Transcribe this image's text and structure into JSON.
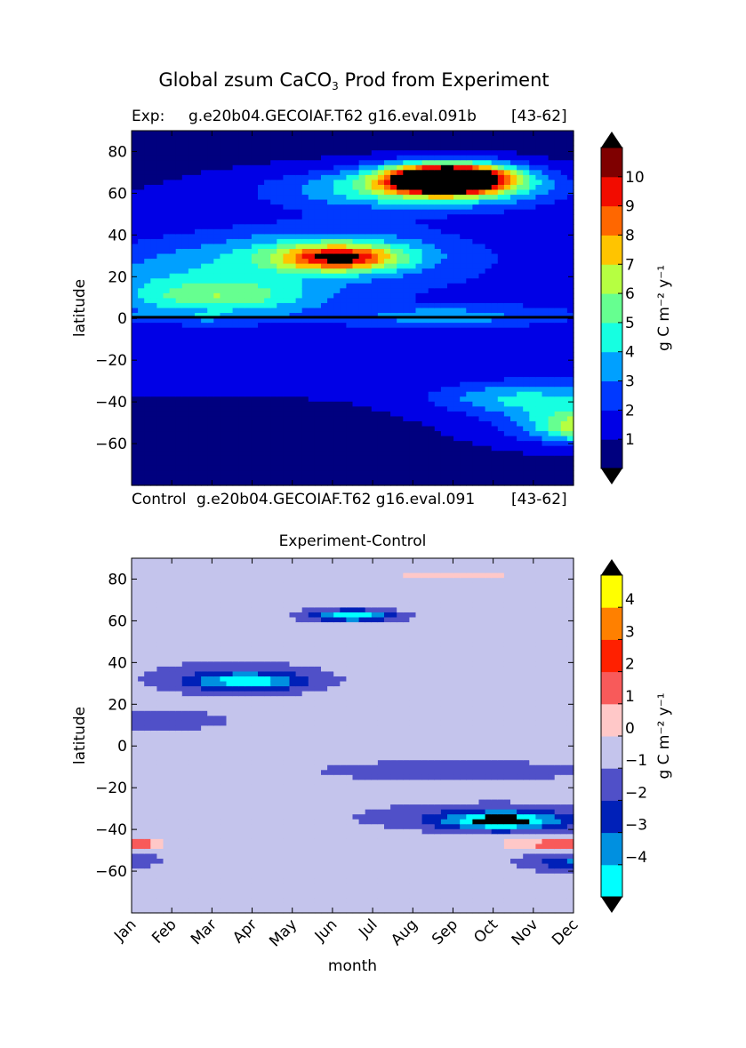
{
  "figure": {
    "title_prefix": "Global zsum CaCO",
    "title_subscript": "3",
    "title_suffix": " Prod from Experiment"
  },
  "chart_data": [
    {
      "type": "heatmap",
      "title_left": "Exp:",
      "title_center": "g.e20b04.GECOIAF.T62 g16.eval.091b",
      "title_right": "[43-62]",
      "footer_left": "Control",
      "footer_center": "g.e20b04.GECOIAF.T62 g16.eval.091",
      "footer_right": "[43-62]",
      "ylabel": "latitude",
      "ylim": [
        -80,
        90
      ],
      "y_ticks": [
        80,
        60,
        40,
        20,
        0,
        -20,
        -40,
        -60
      ],
      "colorbar_label": "g C m⁻² y⁻¹",
      "colorbar_ticks": [
        "1",
        "2",
        "3",
        "4",
        "5",
        "6",
        "7",
        "8",
        "9",
        "10"
      ],
      "levels": [
        0,
        1,
        2,
        3,
        4,
        5,
        6,
        7,
        8,
        9,
        10
      ],
      "colors": [
        "#00007f",
        "#0000e6",
        "#0039ff",
        "#00a0ff",
        "#16ffe1",
        "#66ff90",
        "#b6ff41",
        "#ffc400",
        "#ff6700",
        "#f20c00",
        "#7f0000"
      ],
      "extend_low_color": "#000000",
      "extend_high_color": "#000000",
      "features": [
        {
          "x": 7.9,
          "y": 67,
          "sx": 1.1,
          "sy": 5,
          "amp": 14
        },
        {
          "x": 7.0,
          "y": 62,
          "sx": 2.4,
          "sy": 7,
          "amp": 4
        },
        {
          "x": 5.2,
          "y": 29,
          "sx": 1.1,
          "sy": 4.5,
          "amp": 6.5
        },
        {
          "x": 4.8,
          "y": 32,
          "sx": 2.2,
          "sy": 9,
          "amp": 2.5
        },
        {
          "x": 2.2,
          "y": 10,
          "sx": 1.7,
          "sy": 6,
          "amp": 3.5
        },
        {
          "x": 1.5,
          "y": 22,
          "sx": 2.2,
          "sy": 9,
          "amp": 1.5
        },
        {
          "x": 1.5,
          "y": 0.5,
          "sx": 1.6,
          "sy": 1,
          "amp": 1.5
        },
        {
          "x": 7.8,
          "y": 1,
          "sx": 1.6,
          "sy": 3,
          "amp": 2
        },
        {
          "x": 9.3,
          "y": -38,
          "sx": 1.4,
          "sy": 5,
          "amp": 2
        },
        {
          "x": 11.4,
          "y": -52,
          "sx": 0.9,
          "sy": 5,
          "amp": 4.5
        },
        {
          "x": 11.0,
          "y": -46,
          "sx": 1.7,
          "sy": 10,
          "amp": 2.5
        }
      ]
    },
    {
      "type": "heatmap",
      "title": "Experiment-Control",
      "ylabel": "latitude",
      "xlabel": "month",
      "ylim": [
        -80,
        90
      ],
      "y_ticks": [
        80,
        60,
        40,
        20,
        0,
        -20,
        -40,
        -60
      ],
      "categories": [
        "Jan",
        "Feb",
        "Mar",
        "Apr",
        "May",
        "Jun",
        "Jul",
        "Aug",
        "Sep",
        "Oct",
        "Nov",
        "Dec"
      ],
      "colorbar_label": "g C m⁻² y⁻¹",
      "colorbar_ticks": [
        "4",
        "3",
        "2",
        "1",
        "0",
        "-1",
        "-2",
        "-3",
        "-4"
      ],
      "levels": [
        -5,
        -4,
        -3,
        -2,
        -1,
        0,
        1,
        2,
        3,
        4,
        5
      ],
      "colors": [
        "#00ffff",
        "#0090e0",
        "#0020b8",
        "#5050c8",
        "#c4c4ec",
        "#ffc8c8",
        "#f85a5a",
        "#ff2000",
        "#ff8000",
        "#ffff00"
      ],
      "extend_low_color": "#000000",
      "extend_high_color": "#000000",
      "features": [
        {
          "x": 5.5,
          "y": 62.5,
          "sx": 0.8,
          "sy": 2,
          "amp": -4.2
        },
        {
          "x": 2.9,
          "y": 31,
          "sx": 1.0,
          "sy": 3,
          "amp": -3.5
        },
        {
          "x": 2.5,
          "y": 33,
          "sx": 1.9,
          "sy": 7,
          "amp": -0.9
        },
        {
          "x": 0.7,
          "y": 12,
          "sx": 1.6,
          "sy": 4,
          "amp": -0.9
        },
        {
          "x": 9.2,
          "y": -36,
          "sx": 1.0,
          "sy": 3,
          "amp": -4.5
        },
        {
          "x": 9.0,
          "y": -34,
          "sx": 2.6,
          "sy": 5,
          "amp": -1.2
        },
        {
          "x": 8.0,
          "y": -12,
          "sx": 4.0,
          "sy": 6,
          "amp": -0.7
        },
        {
          "x": 10.7,
          "y": -47,
          "sx": 0.9,
          "sy": 1.5,
          "amp": 2.6
        },
        {
          "x": 0.2,
          "y": -47,
          "sx": 0.4,
          "sy": 1.5,
          "amp": 2.5
        },
        {
          "x": 11.3,
          "y": -56,
          "sx": 1.0,
          "sy": 3,
          "amp": -2.8
        },
        {
          "x": 0.2,
          "y": -55,
          "sx": 0.4,
          "sy": 2,
          "amp": -1.5
        },
        {
          "x": 8.0,
          "y": 82,
          "sx": 2.2,
          "sy": 3,
          "amp": 0.6
        },
        {
          "x": 8.0,
          "y": 65,
          "sx": 1.1,
          "sy": 2,
          "amp": 0.5
        },
        {
          "x": 3.7,
          "y": 56,
          "sx": 0.9,
          "sy": 1.5,
          "amp": 0.5
        }
      ]
    }
  ]
}
